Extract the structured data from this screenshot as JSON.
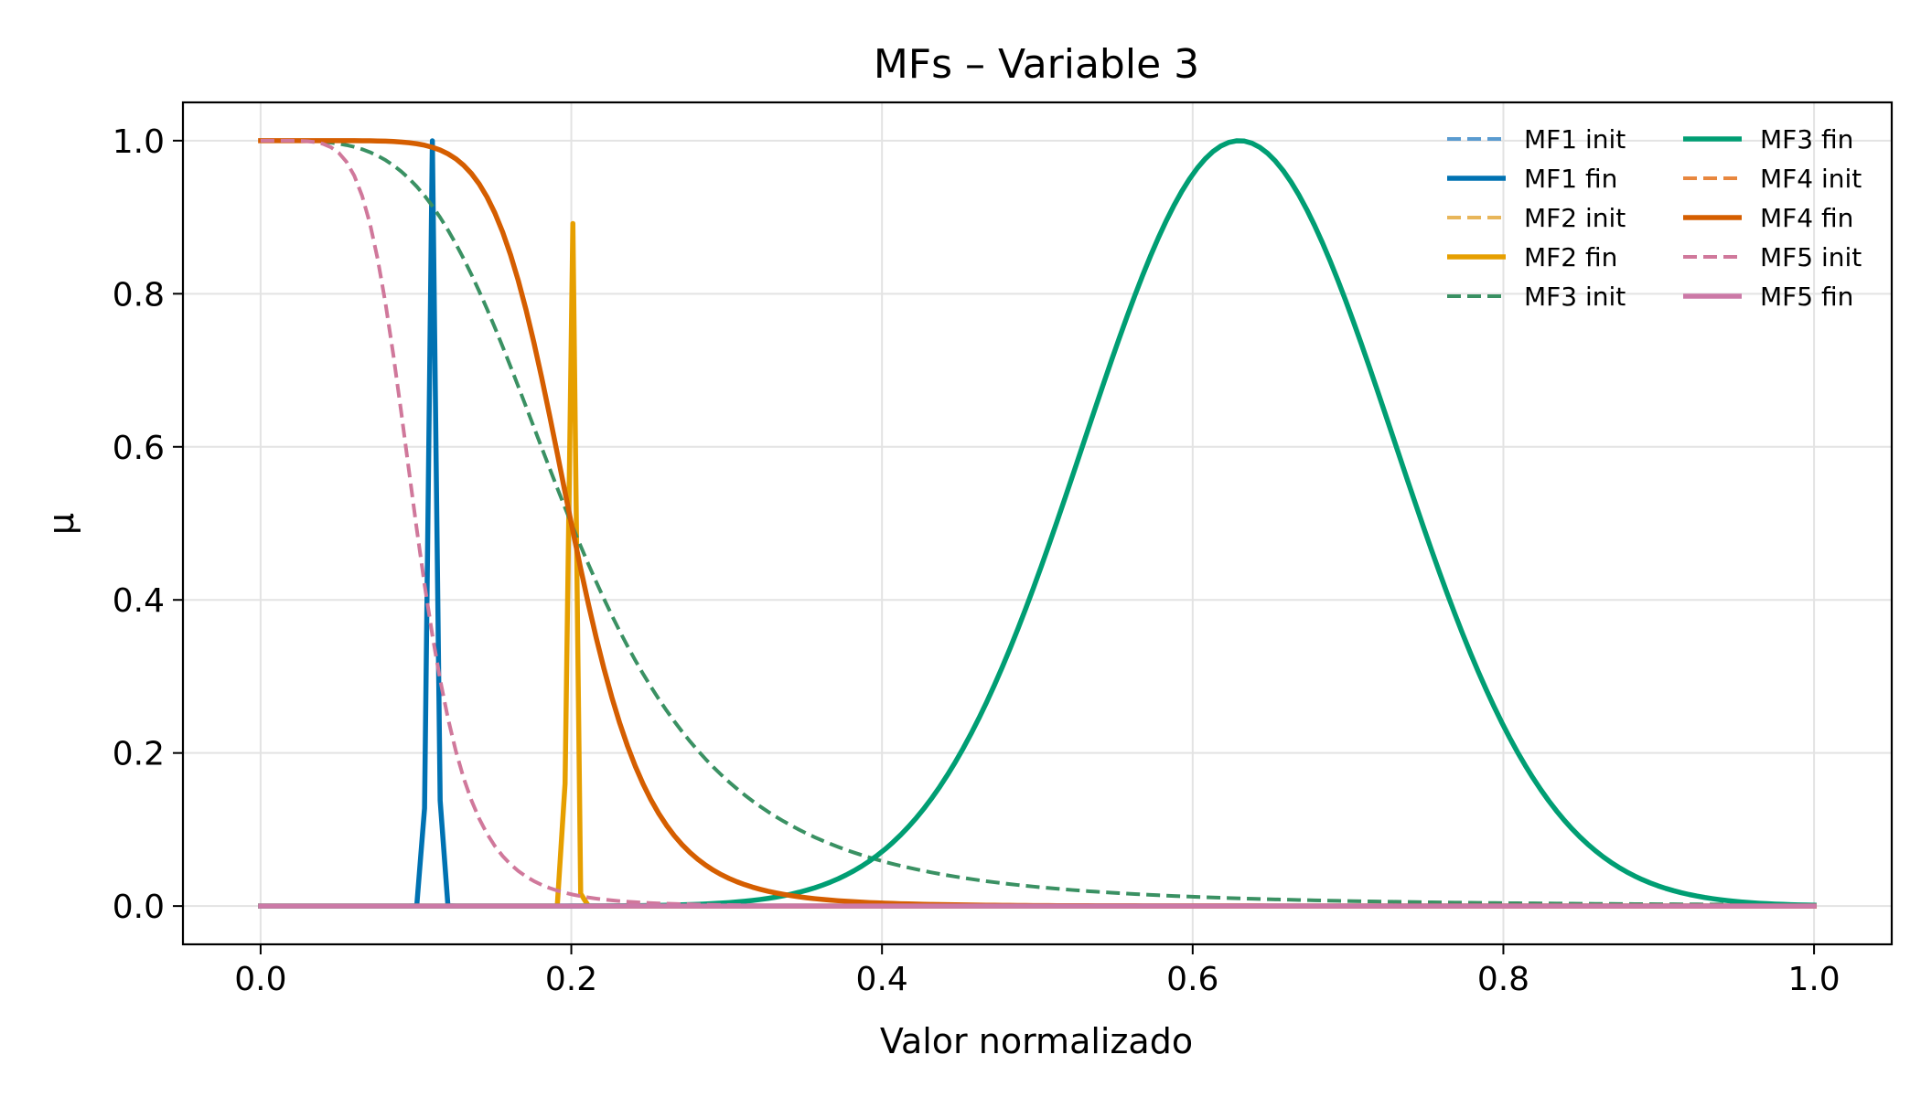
{
  "chart_data": {
    "type": "line",
    "title": "MFs – Variable 3",
    "xlabel": "Valor normalizado",
    "ylabel": "μ",
    "xlim": [
      -0.05,
      1.05
    ],
    "ylim": [
      -0.05,
      1.05
    ],
    "xticks": [
      0.0,
      0.2,
      0.4,
      0.6,
      0.8,
      1.0
    ],
    "yticks": [
      0.0,
      0.2,
      0.4,
      0.6,
      0.8,
      1.0
    ],
    "xtick_labels": [
      "0.0",
      "0.2",
      "0.4",
      "0.6",
      "0.8",
      "1.0"
    ],
    "ytick_labels": [
      "0.0",
      "0.2",
      "0.4",
      "0.6",
      "0.8",
      "1.0"
    ],
    "grid": true,
    "legend": {
      "position": "top-right",
      "columns": 2
    },
    "sample_points": 200,
    "series": [
      {
        "name": "MF1 init",
        "style": "dashed",
        "color": "#5a9bd0",
        "func": "zero"
      },
      {
        "name": "MF1 fin",
        "style": "solid",
        "color": "#0072b2",
        "func": "gauss",
        "center": 0.1106,
        "sigma": 0.0025
      },
      {
        "name": "MF2 init",
        "style": "dashed",
        "color": "#e8b65a",
        "func": "zero"
      },
      {
        "name": "MF2 fin",
        "style": "solid",
        "color": "#e69f00",
        "func": "gauss",
        "center": 0.2,
        "sigma": 0.0021
      },
      {
        "name": "MF3 init",
        "style": "dashed",
        "color": "#3a9163",
        "func": "zmf",
        "a": 0.0,
        "b": 0.2,
        "c": 2.0
      },
      {
        "name": "MF3 fin",
        "style": "solid",
        "color": "#009e73",
        "func": "gauss",
        "center": 0.63,
        "sigma": 0.1
      },
      {
        "name": "MF4 init",
        "style": "dashed",
        "color": "#e8873e",
        "func": "zero"
      },
      {
        "name": "MF4 fin",
        "style": "solid",
        "color": "#d55e00",
        "func": "zmf",
        "a": 0.0,
        "b": 0.2,
        "c": 4.0
      },
      {
        "name": "MF5 init",
        "style": "dashed",
        "color": "#d0789b",
        "func": "zmf",
        "a": 0.0,
        "b": 0.1,
        "c": 3.0
      },
      {
        "name": "MF5 fin",
        "style": "solid",
        "color": "#cc79a7",
        "func": "zero"
      }
    ]
  }
}
